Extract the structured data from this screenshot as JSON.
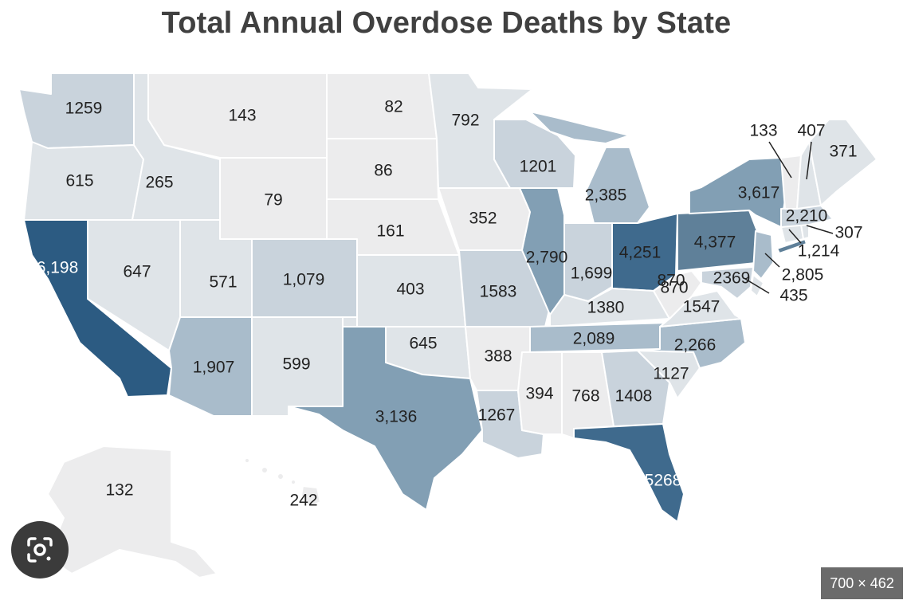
{
  "title": "Total Annual Overdose Deaths by State",
  "image_size_badge": "700 × 462",
  "icons": {
    "lens": "google-lens-icon"
  },
  "colors": {
    "very_low": "#ececed",
    "low": "#dfe4e8",
    "mid_low": "#c9d3dc",
    "mid": "#a9bccb",
    "mid_high": "#829fb4",
    "high": "#5f8099",
    "very_high": "#3f6a8d",
    "top": "#2c5b82"
  },
  "states": {
    "WA": "1259",
    "OR": "615",
    "CA": "6,198",
    "NV": "647",
    "ID": "265",
    "MT": "143",
    "WY": "79",
    "UT": "571",
    "AZ": "1,907",
    "CO": "1,079",
    "NM": "599",
    "ND": "82",
    "SD": "86",
    "NE": "161",
    "KS": "403",
    "OK": "645",
    "TX": "3,136",
    "MN": "792",
    "IA": "352",
    "MO": "1583",
    "AR": "388",
    "LA": "1267",
    "WI": "1201",
    "IL": "2,790",
    "MI": "2,385",
    "IN": "1,699",
    "OH": "4,251",
    "KY": "1380",
    "TN": "2,089",
    "MS": "394",
    "AL": "768",
    "GA": "1408",
    "FL": "5268",
    "SC": "1127",
    "NC": "2,266",
    "VA": "1547",
    "WV": "870",
    "WV2": "870",
    "PA": "4,377",
    "NY": "3,617",
    "NJ": "2,805",
    "MD": "2369",
    "DE": "435",
    "CT": "1,214",
    "RI": "307",
    "MA": "2,210",
    "VT": "133",
    "NH": "407",
    "ME": "371",
    "AK": "132",
    "HI": "242"
  }
}
